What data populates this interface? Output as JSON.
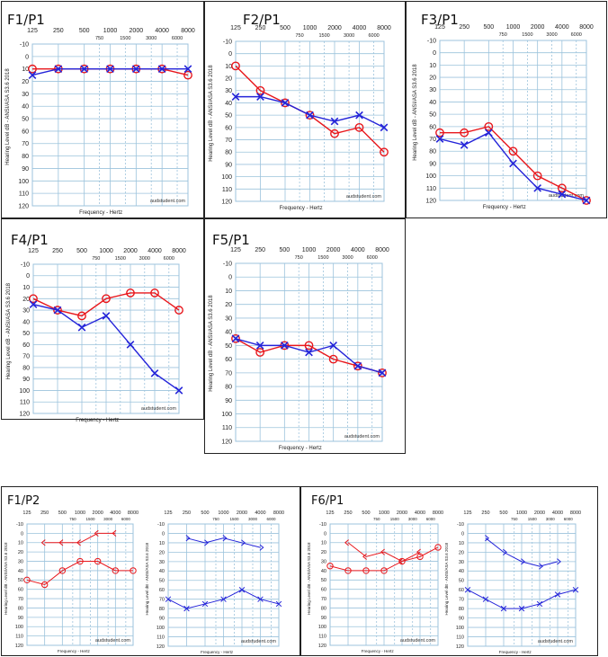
{
  "colors": {
    "right_ear": "#e8171c",
    "left_ear": "#2424d9",
    "grid": "#9cc3dc",
    "border": "#222222"
  },
  "axis": {
    "freq_major_labels": [
      "125",
      "250",
      "500",
      "1000",
      "2000",
      "4000",
      "8000"
    ],
    "freq_inter_labels": [
      "750",
      "1500",
      "3000",
      "6000"
    ],
    "db_labels": [
      "-10",
      "0",
      "10",
      "20",
      "30",
      "40",
      "50",
      "60",
      "70",
      "80",
      "90",
      "100",
      "110",
      "120"
    ],
    "xlabel": "Frequency - Hertz",
    "ylabel": "Hearing Level dB - ANSI/ASA S3.6 2018",
    "watermark": "audstudent.com"
  },
  "chart_data": [
    {
      "id": "F1/P1",
      "title": "F1/P1",
      "type": "line",
      "xscale": "log2",
      "ylim": [
        -10,
        120
      ],
      "y_inverted": true,
      "x": [
        125,
        250,
        500,
        1000,
        2000,
        4000,
        8000
      ],
      "series": [
        {
          "name": "Right ear",
          "marker": "circle",
          "color": "#e8171c",
          "values": [
            10,
            10,
            10,
            10,
            10,
            10,
            15
          ]
        },
        {
          "name": "Left ear",
          "marker": "x",
          "color": "#2424d9",
          "values": [
            15,
            10,
            10,
            10,
            10,
            10,
            10
          ]
        }
      ]
    },
    {
      "id": "F2/P1",
      "title": "F2/P1",
      "type": "line",
      "xscale": "log2",
      "ylim": [
        -10,
        120
      ],
      "y_inverted": true,
      "x": [
        125,
        250,
        500,
        1000,
        2000,
        4000,
        8000
      ],
      "series": [
        {
          "name": "Right ear",
          "marker": "circle",
          "color": "#e8171c",
          "values": [
            10,
            30,
            40,
            50,
            65,
            60,
            80
          ]
        },
        {
          "name": "Left ear",
          "marker": "x",
          "color": "#2424d9",
          "values": [
            35,
            35,
            40,
            50,
            55,
            50,
            60
          ]
        }
      ]
    },
    {
      "id": "F3/P1",
      "title": "F3/P1",
      "type": "line",
      "xscale": "log2",
      "ylim": [
        -10,
        120
      ],
      "y_inverted": true,
      "x": [
        125,
        250,
        500,
        1000,
        2000,
        4000,
        8000
      ],
      "series": [
        {
          "name": "Right ear",
          "marker": "circle",
          "color": "#e8171c",
          "values": [
            65,
            65,
            60,
            80,
            100,
            110,
            120
          ]
        },
        {
          "name": "Left ear",
          "marker": "x",
          "color": "#2424d9",
          "values": [
            70,
            75,
            65,
            90,
            110,
            115,
            120
          ]
        }
      ]
    },
    {
      "id": "F4/P1",
      "title": "F4/P1",
      "type": "line",
      "xscale": "log2",
      "ylim": [
        -10,
        120
      ],
      "y_inverted": true,
      "x": [
        125,
        250,
        500,
        1000,
        2000,
        4000,
        8000
      ],
      "series": [
        {
          "name": "Right ear",
          "marker": "circle",
          "color": "#e8171c",
          "values": [
            20,
            30,
            35,
            20,
            15,
            15,
            30
          ]
        },
        {
          "name": "Left ear",
          "marker": "x",
          "color": "#2424d9",
          "values": [
            25,
            30,
            45,
            35,
            60,
            85,
            100
          ]
        }
      ]
    },
    {
      "id": "F5/P1",
      "title": "F5/P1",
      "type": "line",
      "xscale": "log2",
      "ylim": [
        -10,
        120
      ],
      "y_inverted": true,
      "x": [
        125,
        250,
        500,
        1000,
        2000,
        4000,
        8000
      ],
      "series": [
        {
          "name": "Right ear",
          "marker": "circle",
          "color": "#e8171c",
          "values": [
            45,
            55,
            50,
            50,
            60,
            65,
            70
          ]
        },
        {
          "name": "Left ear",
          "marker": "x",
          "color": "#2424d9",
          "values": [
            45,
            50,
            50,
            55,
            50,
            65,
            70
          ]
        }
      ]
    },
    {
      "id": "F1/P2-right",
      "title": "F1/P2",
      "type": "line",
      "xscale": "log2",
      "ylim": [
        -10,
        120
      ],
      "y_inverted": true,
      "x": [
        125,
        250,
        500,
        1000,
        2000,
        4000,
        8000
      ],
      "series": [
        {
          "name": "Right ear air",
          "marker": "circle",
          "color": "#e8171c",
          "values": [
            50,
            55,
            40,
            30,
            30,
            40,
            40
          ]
        },
        {
          "name": "Right ear bone",
          "marker": "arrow-left",
          "color": "#e8171c",
          "x": [
            250,
            500,
            1000,
            2000,
            4000
          ],
          "values": [
            10,
            10,
            10,
            0,
            0
          ]
        }
      ]
    },
    {
      "id": "F1/P2-left",
      "title": "",
      "type": "line",
      "xscale": "log2",
      "ylim": [
        -10,
        120
      ],
      "y_inverted": true,
      "x": [
        125,
        250,
        500,
        1000,
        2000,
        4000,
        8000
      ],
      "series": [
        {
          "name": "Left ear air",
          "marker": "x",
          "color": "#2424d9",
          "values": [
            70,
            80,
            75,
            70,
            60,
            70,
            75
          ]
        },
        {
          "name": "Left ear bone",
          "marker": "arrow-right",
          "color": "#2424d9",
          "x": [
            250,
            500,
            1000,
            2000,
            4000
          ],
          "values": [
            5,
            10,
            5,
            10,
            15
          ]
        }
      ]
    },
    {
      "id": "F6/P1-right",
      "title": "F6/P1",
      "type": "line",
      "xscale": "log2",
      "ylim": [
        -10,
        120
      ],
      "y_inverted": true,
      "x": [
        125,
        250,
        500,
        1000,
        2000,
        4000,
        8000
      ],
      "series": [
        {
          "name": "Right ear air",
          "marker": "circle",
          "color": "#e8171c",
          "values": [
            35,
            40,
            40,
            40,
            30,
            25,
            15
          ]
        },
        {
          "name": "Right ear bone",
          "marker": "arrow-left",
          "color": "#e8171c",
          "x": [
            250,
            500,
            1000,
            2000,
            4000
          ],
          "values": [
            10,
            25,
            20,
            30,
            20
          ]
        }
      ]
    },
    {
      "id": "F6/P1-left",
      "title": "",
      "type": "line",
      "xscale": "log2",
      "ylim": [
        -10,
        120
      ],
      "y_inverted": true,
      "x": [
        125,
        250,
        500,
        1000,
        2000,
        4000,
        8000
      ],
      "series": [
        {
          "name": "Left ear air",
          "marker": "x",
          "color": "#2424d9",
          "values": [
            60,
            70,
            80,
            80,
            75,
            65,
            60
          ]
        },
        {
          "name": "Left ear bone",
          "marker": "arrow-right",
          "color": "#2424d9",
          "x": [
            250,
            500,
            1000,
            2000,
            4000
          ],
          "values": [
            5,
            20,
            30,
            35,
            30
          ]
        }
      ]
    }
  ]
}
